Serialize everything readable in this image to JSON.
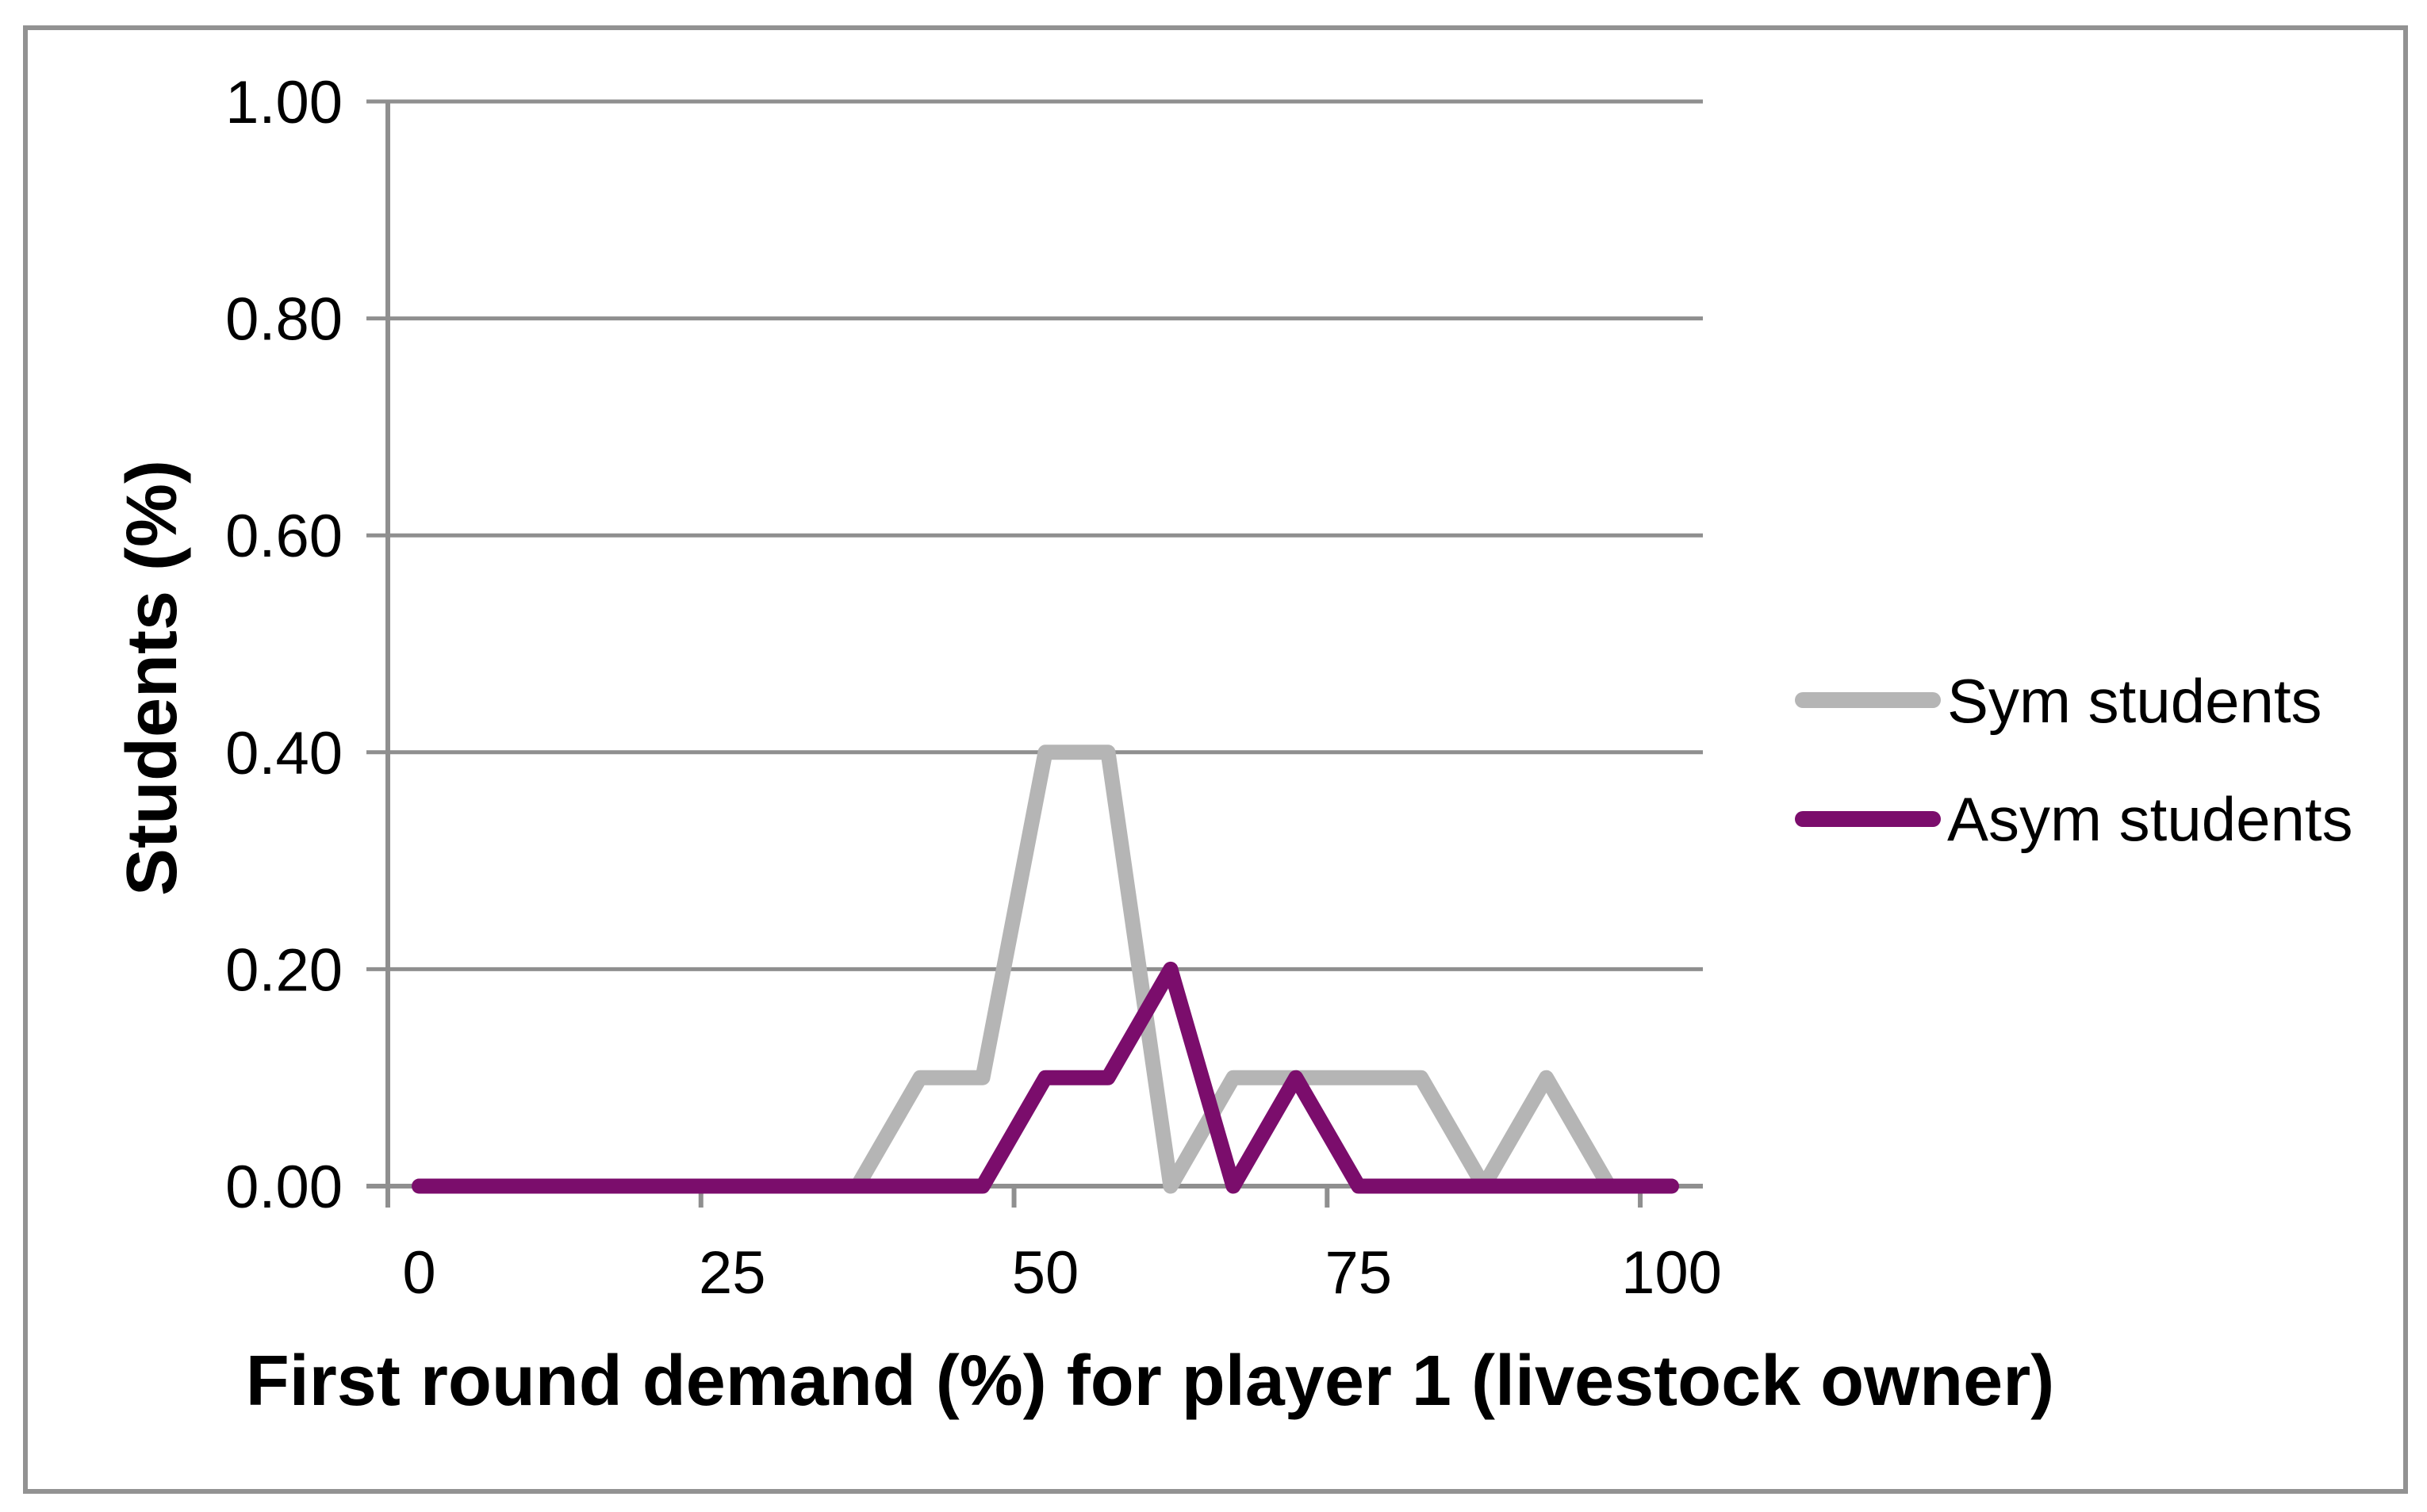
{
  "chart_data": {
    "type": "line",
    "title": "",
    "xlabel": "First round demand (%) for player 1 (livestock owner)",
    "ylabel": "Students (%)",
    "categories": [
      0,
      5,
      10,
      15,
      20,
      25,
      30,
      35,
      40,
      45,
      50,
      55,
      60,
      65,
      70,
      75,
      80,
      85,
      90,
      95,
      100
    ],
    "series": [
      {
        "name": "Sym students",
        "color": "#b5b5b5",
        "values": [
          0,
          0,
          0,
          0,
          0,
          0,
          0,
          0,
          0.1,
          0.1,
          0.4,
          0.4,
          0,
          0.1,
          0.1,
          0.1,
          0.1,
          0,
          0.1,
          0,
          0
        ]
      },
      {
        "name": "Asym students",
        "color": "#7b0d6c",
        "values": [
          0,
          0,
          0,
          0,
          0,
          0,
          0,
          0,
          0,
          0,
          0.1,
          0.1,
          0.2,
          0,
          0.1,
          0,
          0,
          0,
          0,
          0,
          0
        ]
      }
    ],
    "x_tick_labels": [
      "0",
      "25",
      "50",
      "75",
      "100"
    ],
    "x_tick_values": [
      0,
      25,
      50,
      75,
      100
    ],
    "y_tick_labels": [
      "0.00",
      "0.20",
      "0.40",
      "0.60",
      "0.80",
      "1.00"
    ],
    "y_tick_values": [
      0,
      0.2,
      0.4,
      0.6,
      0.8,
      1.0
    ],
    "ylim": [
      0,
      1
    ],
    "grid": true,
    "legend_position": "right",
    "axis_color": "#8f8f8f",
    "grid_color": "#8f8f8f",
    "frame_color": "#929292",
    "text_color": "#000000"
  },
  "legend": {
    "items": [
      {
        "label": "Sym students"
      },
      {
        "label": "Asym students"
      }
    ]
  }
}
